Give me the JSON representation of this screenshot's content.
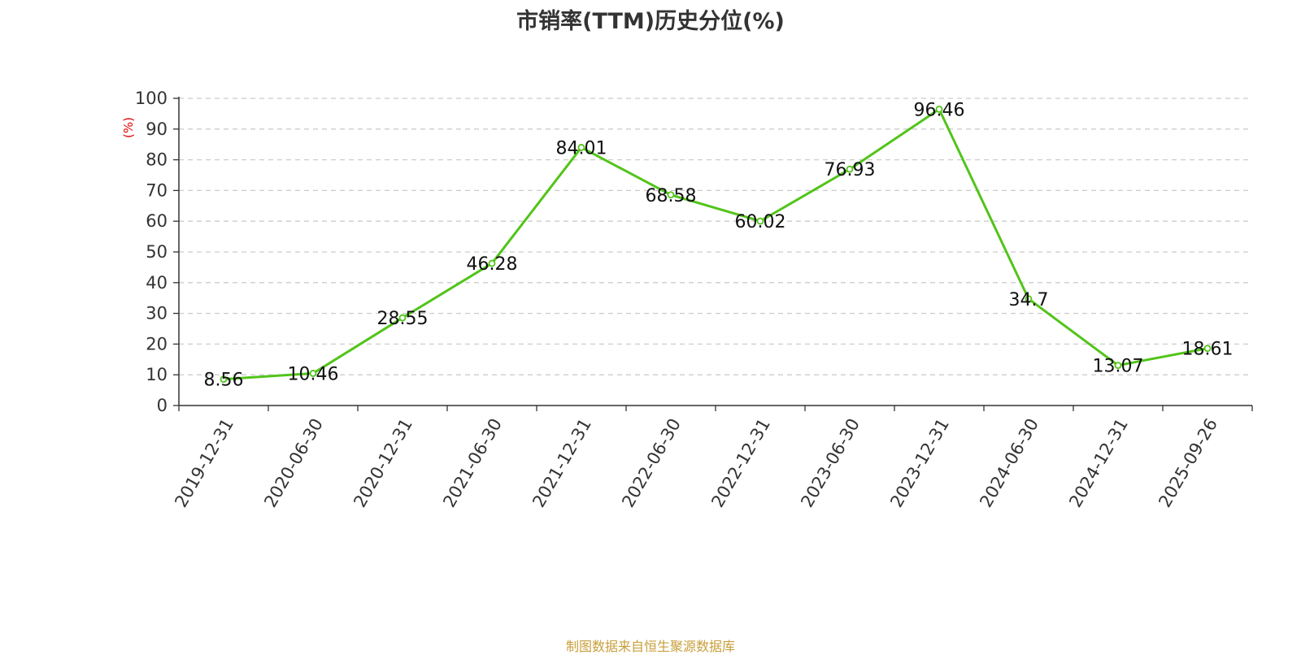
{
  "chart_data": {
    "type": "line",
    "title": "市销率(TTM)历史分位(%)",
    "ylabel": "(%)",
    "xlabel": "",
    "categories": [
      "2019-12-31",
      "2020-06-30",
      "2020-12-31",
      "2021-06-30",
      "2021-12-31",
      "2022-06-30",
      "2022-12-31",
      "2023-06-30",
      "2023-12-31",
      "2024-06-30",
      "2024-12-31",
      "2025-09-26"
    ],
    "series": [
      {
        "values": [
          8.56,
          10.46,
          28.55,
          46.28,
          84.01,
          68.58,
          60.02,
          76.93,
          96.46,
          34.7,
          13.07,
          18.61
        ]
      }
    ],
    "data_labels": [
      "8.56",
      "10.46",
      "28.55",
      "46.28",
      "84.01",
      "68.58",
      "60.02",
      "76.93",
      "96.46",
      "34.7",
      "13.07",
      "18.61"
    ],
    "ylim": [
      0,
      100
    ],
    "yticks": [
      0,
      10,
      20,
      30,
      40,
      50,
      60,
      70,
      80,
      90,
      100
    ],
    "grid": true,
    "line_color": "#52c41a",
    "ylabel_color": "#e60000",
    "source_note": "制图数据来自恒生聚源数据库"
  }
}
